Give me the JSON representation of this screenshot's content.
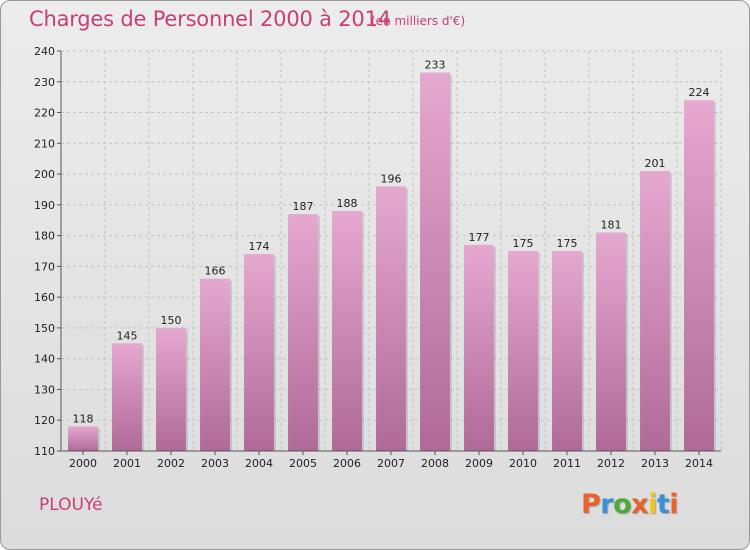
{
  "header": {
    "title": "Charges de Personnel 2000 à 2014",
    "subtitle": "(en milliers d'€)"
  },
  "footer": {
    "commune": "PLOUYé",
    "logo_text": "Proxiti"
  },
  "colors": {
    "bar_top": "#e5a8cf",
    "bar_bottom": "#b06a98",
    "title": "#c83e78",
    "logo_letters": [
      "#e8622a",
      "#3a8fd6",
      "#4caa3a",
      "#e8622a",
      "#f0c419",
      "#3a8fd6",
      "#e8622a"
    ]
  },
  "chart_data": {
    "type": "bar",
    "categories": [
      "2000",
      "2001",
      "2002",
      "2003",
      "2004",
      "2005",
      "2006",
      "2007",
      "2008",
      "2009",
      "2010",
      "2011",
      "2012",
      "2013",
      "2014"
    ],
    "values": [
      118,
      145,
      150,
      166,
      174,
      187,
      188,
      196,
      233,
      177,
      175,
      175,
      181,
      201,
      224
    ],
    "ylim": [
      110,
      240
    ],
    "yticks": [
      110,
      120,
      130,
      140,
      150,
      160,
      170,
      180,
      190,
      200,
      210,
      220,
      230,
      240
    ],
    "grid": true,
    "xlabel": "",
    "ylabel": ""
  }
}
